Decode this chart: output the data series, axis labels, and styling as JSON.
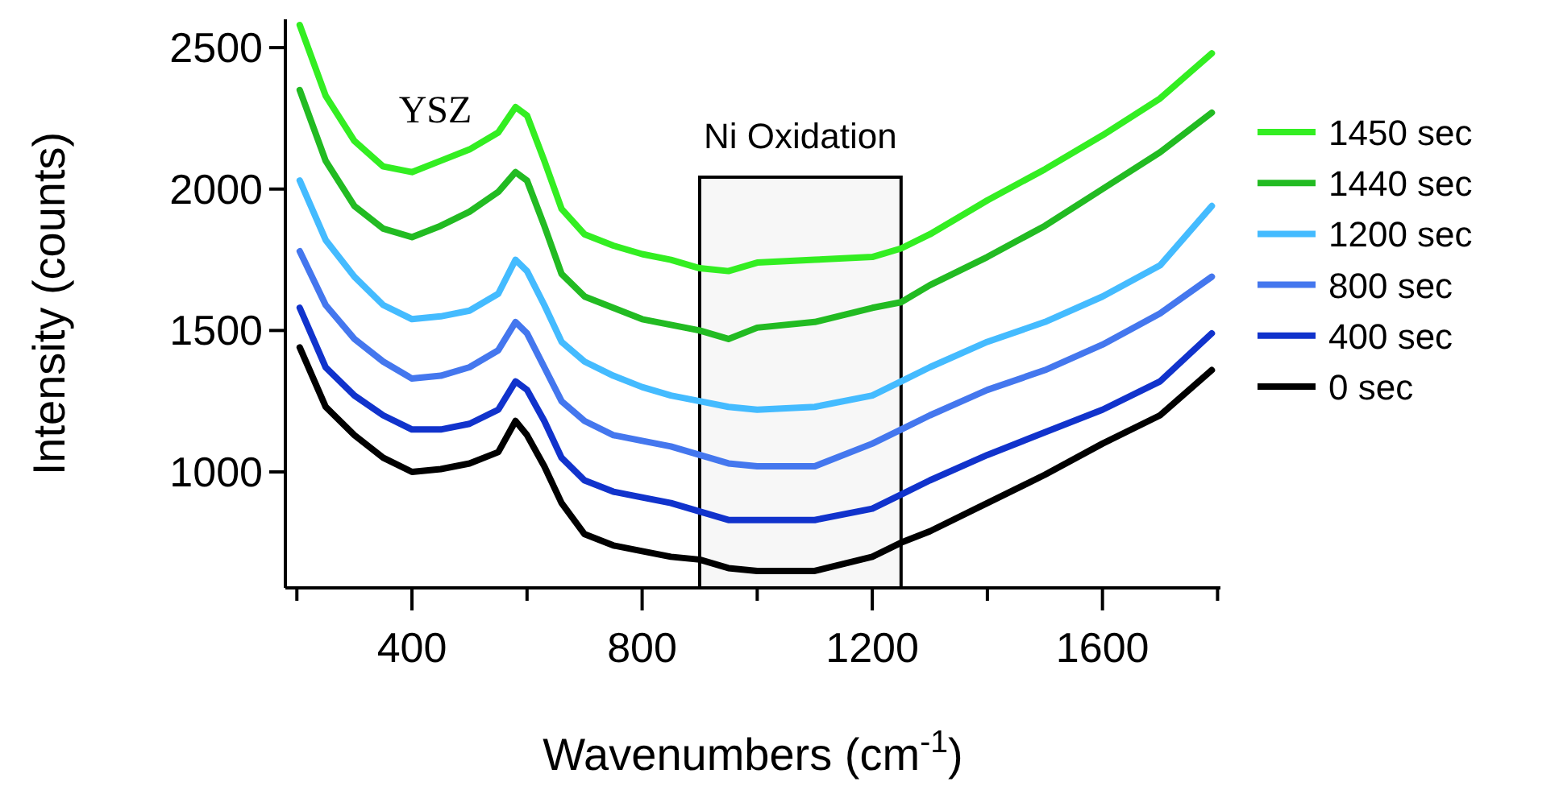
{
  "chart_data": {
    "type": "line",
    "xlabel": "Wavenumbers (cm$^{-1}$)",
    "ylabel": "Intensity (counts)",
    "annotations": [
      "YSZ"
    ],
    "x": [
      205,
      250,
      300,
      350,
      400,
      450,
      500,
      550,
      580,
      600,
      630,
      660,
      700,
      750,
      800,
      850,
      900,
      950,
      1000,
      1100,
      1200,
      1250,
      1300,
      1400,
      1500,
      1600,
      1700,
      1790
    ],
    "series": [
      {
        "name": "1450 sec",
        "color": "#33ee22",
        "values": [
          2580,
          2330,
          2170,
          2080,
          2060,
          2100,
          2140,
          2200,
          2290,
          2260,
          2100,
          1930,
          1840,
          1800,
          1770,
          1750,
          1720,
          1710,
          1740,
          1750,
          1760,
          1790,
          1840,
          1960,
          2070,
          2190,
          2320,
          2480
        ]
      },
      {
        "name": "1440 sec",
        "color": "#22bb22",
        "values": [
          2350,
          2100,
          1940,
          1860,
          1830,
          1870,
          1920,
          1990,
          2060,
          2030,
          1870,
          1700,
          1620,
          1580,
          1540,
          1520,
          1500,
          1470,
          1510,
          1530,
          1580,
          1600,
          1660,
          1760,
          1870,
          2000,
          2130,
          2270
        ]
      },
      {
        "name": "1200 sec",
        "color": "#44bbff",
        "values": [
          2030,
          1820,
          1690,
          1590,
          1540,
          1550,
          1570,
          1630,
          1750,
          1710,
          1590,
          1460,
          1390,
          1340,
          1300,
          1270,
          1250,
          1230,
          1220,
          1230,
          1270,
          1320,
          1370,
          1460,
          1530,
          1620,
          1730,
          1940
        ]
      },
      {
        "name": "800 sec",
        "color": "#4477ee",
        "values": [
          1780,
          1590,
          1470,
          1390,
          1330,
          1340,
          1370,
          1430,
          1530,
          1490,
          1370,
          1250,
          1180,
          1130,
          1110,
          1090,
          1060,
          1030,
          1020,
          1020,
          1100,
          1150,
          1200,
          1290,
          1360,
          1450,
          1560,
          1690
        ]
      },
      {
        "name": "400 sec",
        "color": "#1133cc",
        "values": [
          1580,
          1370,
          1270,
          1200,
          1150,
          1150,
          1170,
          1220,
          1320,
          1290,
          1180,
          1050,
          970,
          930,
          910,
          890,
          860,
          830,
          830,
          830,
          870,
          920,
          970,
          1060,
          1140,
          1220,
          1320,
          1490
        ]
      },
      {
        "name": "0 sec",
        "color": "#000000",
        "values": [
          1440,
          1230,
          1130,
          1050,
          1000,
          1010,
          1030,
          1070,
          1180,
          1130,
          1020,
          890,
          780,
          740,
          720,
          700,
          690,
          660,
          650,
          650,
          700,
          750,
          790,
          890,
          990,
          1100,
          1200,
          1360
        ]
      }
    ],
    "xlim": [
      180,
      1805
    ],
    "xticks": [
      {
        "value": 200,
        "label": null
      },
      400,
      {
        "value": 600,
        "label": null
      },
      800,
      {
        "value": 1000,
        "label": null
      },
      1200,
      {
        "value": 1400,
        "label": null
      },
      1600,
      {
        "value": 1800,
        "label": null
      }
    ],
    "ylim": [
      590,
      2600
    ],
    "yticks": [
      1000,
      1500,
      2000,
      2500
    ],
    "bands": [
      {
        "axis": "x",
        "from": 900,
        "to": 1250,
        "label": "Ni Oxidation",
        "color": "#000000"
      }
    ],
    "legend": "right",
    "line_style": "solid",
    "grid": false
  }
}
